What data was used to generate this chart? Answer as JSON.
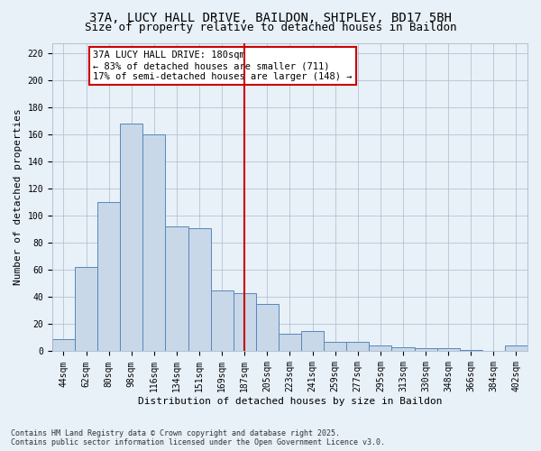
{
  "title_line1": "37A, LUCY HALL DRIVE, BAILDON, SHIPLEY, BD17 5BH",
  "title_line2": "Size of property relative to detached houses in Baildon",
  "xlabel": "Distribution of detached houses by size in Baildon",
  "ylabel": "Number of detached properties",
  "categories": [
    "44sqm",
    "62sqm",
    "80sqm",
    "98sqm",
    "116sqm",
    "134sqm",
    "151sqm",
    "169sqm",
    "187sqm",
    "205sqm",
    "223sqm",
    "241sqm",
    "259sqm",
    "277sqm",
    "295sqm",
    "313sqm",
    "330sqm",
    "348sqm",
    "366sqm",
    "384sqm",
    "402sqm"
  ],
  "values": [
    9,
    62,
    110,
    168,
    160,
    92,
    91,
    45,
    43,
    35,
    13,
    15,
    7,
    7,
    4,
    3,
    2,
    2,
    1,
    0,
    4
  ],
  "bar_color": "#c8d8e8",
  "bar_edge_color": "#5588bb",
  "vline_x": 8.0,
  "vline_color": "#cc0000",
  "annotation_text": "37A LUCY HALL DRIVE: 180sqm\n← 83% of detached houses are smaller (711)\n17% of semi-detached houses are larger (148) →",
  "annotation_box_color": "#ffffff",
  "annotation_box_edge_color": "#cc0000",
  "ylim": [
    0,
    228
  ],
  "yticks": [
    0,
    20,
    40,
    60,
    80,
    100,
    120,
    140,
    160,
    180,
    200,
    220
  ],
  "grid_color": "#aabbcc",
  "background_color": "#e8f0f8",
  "footer_text": "Contains HM Land Registry data © Crown copyright and database right 2025.\nContains public sector information licensed under the Open Government Licence v3.0.",
  "title1_fontsize": 10,
  "title2_fontsize": 9,
  "axis_label_fontsize": 8,
  "tick_fontsize": 7,
  "annotation_fontsize": 7.5
}
